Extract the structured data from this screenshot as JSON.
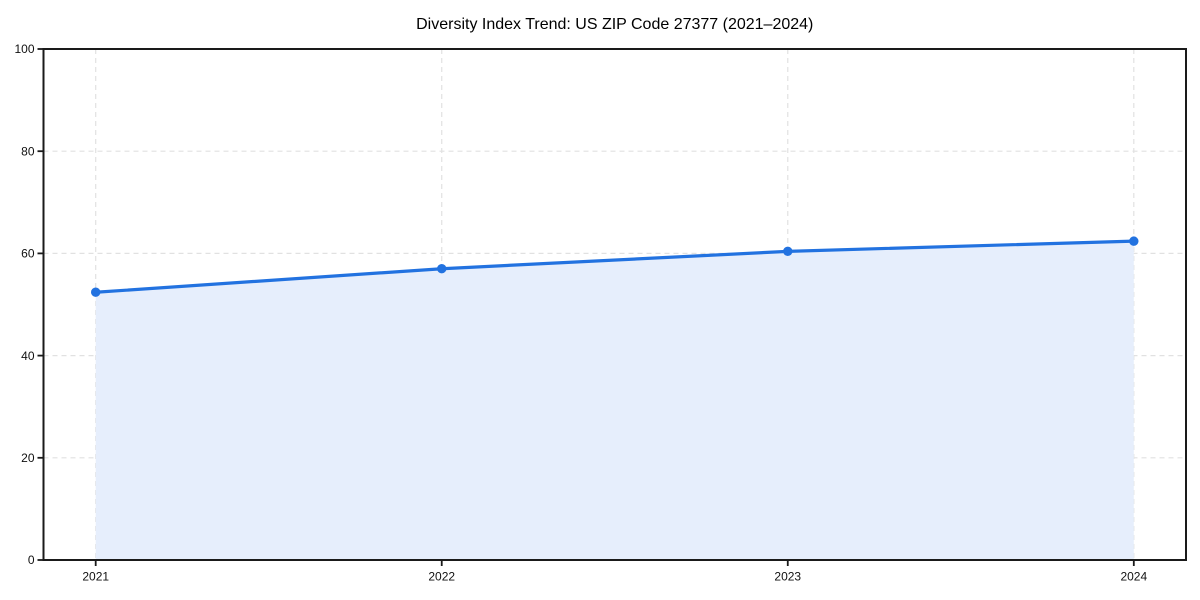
{
  "page": {
    "background": "#ffffff"
  },
  "chart_data": {
    "type": "line",
    "title": "Diversity Index Trend: US ZIP Code 27377 (2021–2024)",
    "x": [
      "2021",
      "2022",
      "2023",
      "2024"
    ],
    "series": [
      {
        "name": "Diversity Index",
        "values": [
          52.4,
          57.0,
          60.4,
          62.4
        ]
      }
    ],
    "xlabel": "",
    "ylabel": "",
    "ylim": [
      0,
      100
    ],
    "yticks": [
      0,
      20,
      40,
      60,
      80,
      100
    ],
    "grid": true,
    "grid_style": "dashed",
    "legend": "none",
    "area_fill": true,
    "marker": "circle",
    "colors": {
      "line": "#2272e0",
      "marker": "#2272e0",
      "area_fill": "#e6eefc",
      "grid": "#e1e1e1",
      "spine": "#1a1a1a",
      "tick_label": "#111111",
      "title": "#000000"
    }
  }
}
